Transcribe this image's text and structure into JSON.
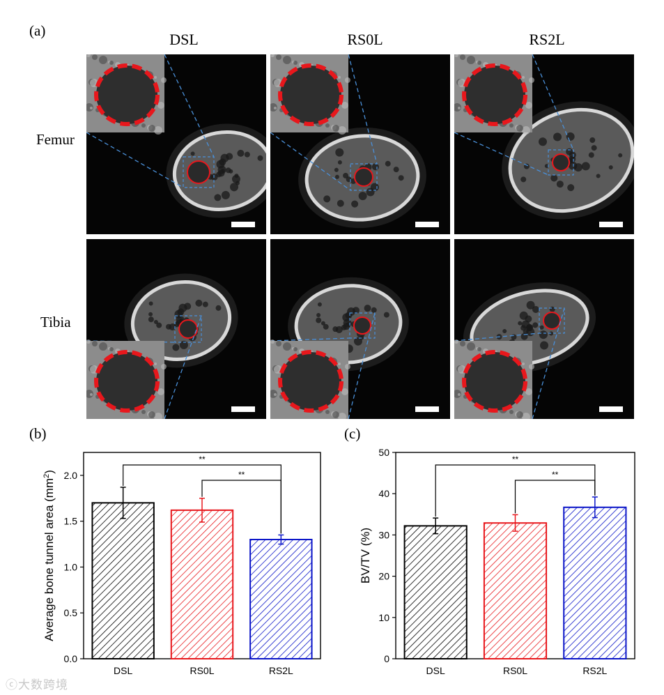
{
  "panels": {
    "a": "(a)",
    "b": "(b)",
    "c": "(c)"
  },
  "micro_ct": {
    "columns": [
      "DSL",
      "RS0L",
      "RS2L"
    ],
    "rows": [
      "Femur",
      "Tibia"
    ],
    "colors": {
      "tunnel_outline": "#e8171c",
      "roi_box": "#4a90d9",
      "scale_bar": "#ffffff"
    }
  },
  "chart_data": [
    {
      "type": "bar",
      "categories": [
        "DSL",
        "RS0L",
        "RS2L"
      ],
      "values": [
        1.7,
        1.62,
        1.3
      ],
      "errors": [
        0.17,
        0.13,
        0.05
      ],
      "colors": [
        "#000000",
        "#e8171c",
        "#0a14c8"
      ],
      "fill": "diagonal-hatch",
      "xlabel": "",
      "ylabel": "Average bone tunnel area (mm2)",
      "ylabel_main": "Average bone tunnel area (mm",
      "ylabel_sup": "2",
      "ylabel_tail": ")",
      "ylim": [
        0,
        2.25
      ],
      "yticks": [
        "0.0",
        "0.5",
        "1.0",
        "1.5",
        "2.0"
      ],
      "significance": [
        {
          "pair": [
            "DSL",
            "RS2L"
          ],
          "label": "**"
        },
        {
          "pair": [
            "RS0L",
            "RS2L"
          ],
          "label": "**"
        }
      ],
      "grid": false
    },
    {
      "type": "bar",
      "categories": [
        "DSL",
        "RS0L",
        "RS2L"
      ],
      "values": [
        32.2,
        32.9,
        36.7
      ],
      "errors": [
        1.9,
        2.0,
        2.5
      ],
      "colors": [
        "#000000",
        "#e8171c",
        "#0a14c8"
      ],
      "fill": "diagonal-hatch",
      "xlabel": "",
      "ylabel": "BV/TV (%)",
      "ylim": [
        0,
        50
      ],
      "yticks": [
        "0",
        "10",
        "20",
        "30",
        "40",
        "50"
      ],
      "significance": [
        {
          "pair": [
            "DSL",
            "RS2L"
          ],
          "label": "**"
        },
        {
          "pair": [
            "RS0L",
            "RS2L"
          ],
          "label": "**"
        }
      ],
      "grid": false
    }
  ],
  "watermark": "大数跨境"
}
